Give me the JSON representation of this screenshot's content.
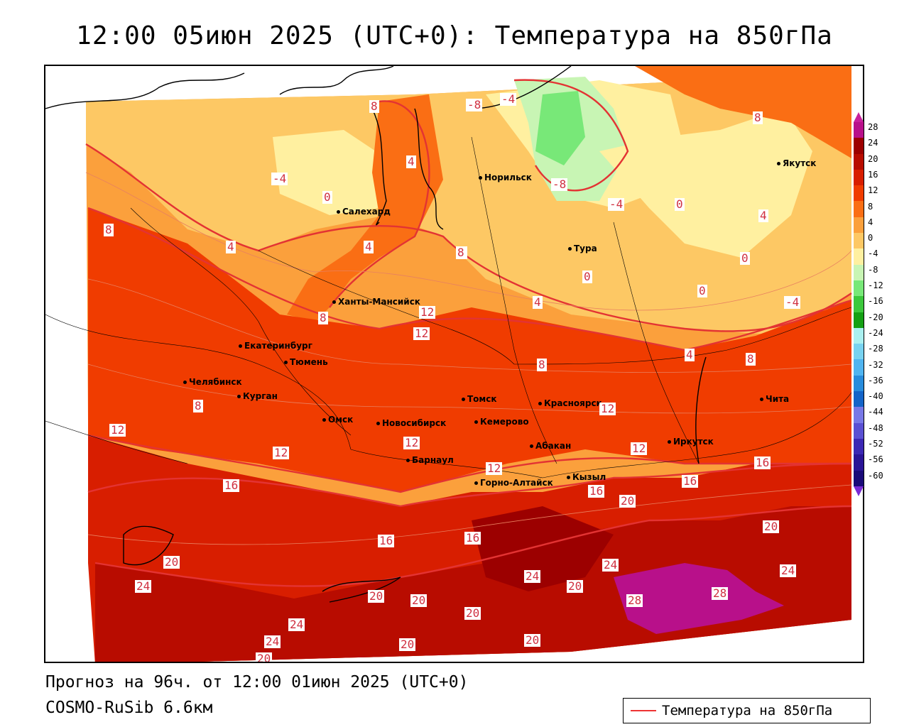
{
  "title": "12:00 05июн 2025 (UTC+0): Температура на 850гПа",
  "footer": {
    "forecast": "Прогноз на 96ч. от 12:00 01июн 2025 (UTC+0)",
    "model": "COSMO-RuSib 6.6км"
  },
  "legend": {
    "label": "Температура на 850гПа",
    "line_color": "#e33333"
  },
  "colorbar": {
    "levels": [
      "28",
      "24",
      "20",
      "16",
      "12",
      "8",
      "4",
      "0",
      "-4",
      "-8",
      "-12",
      "-16",
      "-20",
      "-24",
      "-28",
      "-32",
      "-36",
      "-40",
      "-44",
      "-48",
      "-52",
      "-56",
      "-60"
    ],
    "colors": [
      "#b8108a",
      "#9c0000",
      "#b80c00",
      "#d81e00",
      "#f03c00",
      "#fa6e14",
      "#fba03c",
      "#fdc864",
      "#fff0a0",
      "#c8f5b4",
      "#78e878",
      "#3cc83c",
      "#14a014",
      "#aaf0f0",
      "#78d2f0",
      "#50b4f0",
      "#288cdc",
      "#1464c8",
      "#7878e6",
      "#5a50d2",
      "#3c28b4",
      "#2a1496",
      "#1a0a78"
    ]
  },
  "cities": [
    {
      "name": "Якутск"
    },
    {
      "name": "Норильск"
    },
    {
      "name": "Салехард"
    },
    {
      "name": "Тура"
    },
    {
      "name": "Ханты-Мансийск"
    },
    {
      "name": "Екатеринбург"
    },
    {
      "name": "Тюмень"
    },
    {
      "name": "Челябинск"
    },
    {
      "name": "Курган"
    },
    {
      "name": "Омск"
    },
    {
      "name": "Новосибирск"
    },
    {
      "name": "Томск"
    },
    {
      "name": "Красноярск"
    },
    {
      "name": "Кемерово"
    },
    {
      "name": "Абакан"
    },
    {
      "name": "Барнаул"
    },
    {
      "name": "Горно-Алтайск"
    },
    {
      "name": "Кызыл"
    },
    {
      "name": "Иркутск"
    },
    {
      "name": "Чита"
    }
  ],
  "contour_labels": [
    "-4",
    "-8",
    "-4",
    "0",
    "-4",
    "-8",
    "8",
    "4",
    "0",
    "4",
    "4",
    "8",
    "8",
    "4",
    "12",
    "12",
    "0",
    "4",
    "8",
    "0",
    "-4",
    "8",
    "4",
    "8",
    "12",
    "12",
    "12",
    "16",
    "12",
    "16",
    "12",
    "16",
    "16",
    "16",
    "20",
    "20",
    "20",
    "24",
    "24",
    "20",
    "20",
    "24",
    "28",
    "28",
    "20",
    "20",
    "20",
    "24",
    "24",
    "20",
    "16",
    "8",
    "24",
    "20",
    "12",
    "4",
    "8",
    "0"
  ]
}
